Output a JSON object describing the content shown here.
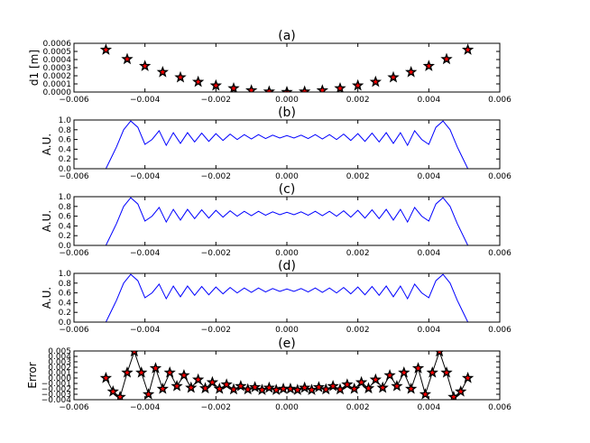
{
  "colors": {
    "line": "#0000ff",
    "marker_edge": "#000000",
    "marker_face": "#ff0000",
    "frame": "#000000"
  },
  "chart_data": [
    {
      "id": "a",
      "type": "scatter",
      "title": "(a)",
      "xlabel": "",
      "ylabel": "d1 [m]",
      "xlim": [
        -0.006,
        0.006
      ],
      "ylim": [
        0,
        0.0006
      ],
      "xticks": [
        "−0.006",
        "−0.004",
        "−0.002",
        "0.000",
        "0.002",
        "0.004",
        "0.006"
      ],
      "yticks": [
        "0.0000",
        "0.0001",
        "0.0002",
        "0.0003",
        "0.0004",
        "0.0005",
        "0.0006"
      ],
      "marker": "star",
      "x": [
        -0.0051,
        -0.0045,
        -0.004,
        -0.0035,
        -0.003,
        -0.0025,
        -0.002,
        -0.0015,
        -0.001,
        -0.0005,
        0.0,
        0.0005,
        0.001,
        0.0015,
        0.002,
        0.0025,
        0.003,
        0.0035,
        0.004,
        0.0045,
        0.0051
      ],
      "y": [
        0.00052,
        0.000405,
        0.00032,
        0.000245,
        0.00018,
        0.000125,
        8e-05,
        4.5e-05,
        2e-05,
        5e-06,
        0.0,
        5e-06,
        2e-05,
        4.5e-05,
        8e-05,
        0.000125,
        0.00018,
        0.000245,
        0.00032,
        0.000405,
        0.00052
      ]
    },
    {
      "id": "b",
      "type": "line",
      "title": "(b)",
      "xlabel": "",
      "ylabel": "A.U.",
      "xlim": [
        -0.006,
        0.006
      ],
      "ylim": [
        0,
        1.0
      ],
      "xticks": [
        "−0.006",
        "−0.004",
        "−0.002",
        "0.000",
        "0.002",
        "0.004",
        "0.006"
      ],
      "yticks": [
        "0.0",
        "0.2",
        "0.4",
        "0.6",
        "0.8",
        "1.0"
      ],
      "x": [
        -0.0051,
        -0.0048,
        -0.0046,
        -0.0044,
        -0.0042,
        -0.004,
        -0.0038,
        -0.0036,
        -0.0034,
        -0.0032,
        -0.003,
        -0.0028,
        -0.0026,
        -0.0024,
        -0.0022,
        -0.002,
        -0.0018,
        -0.0016,
        -0.0014,
        -0.0012,
        -0.001,
        -0.0008,
        -0.0006,
        -0.0004,
        -0.0002,
        0.0,
        0.0002,
        0.0004,
        0.0006,
        0.0008,
        0.001,
        0.0012,
        0.0014,
        0.0016,
        0.0018,
        0.002,
        0.0022,
        0.0024,
        0.0026,
        0.0028,
        0.003,
        0.0032,
        0.0034,
        0.0036,
        0.0038,
        0.004,
        0.0042,
        0.0044,
        0.0046,
        0.0048,
        0.0051
      ],
      "y": [
        0.0,
        0.45,
        0.8,
        0.98,
        0.85,
        0.5,
        0.6,
        0.78,
        0.48,
        0.74,
        0.52,
        0.74,
        0.55,
        0.73,
        0.56,
        0.72,
        0.58,
        0.71,
        0.6,
        0.7,
        0.61,
        0.7,
        0.62,
        0.69,
        0.63,
        0.68,
        0.63,
        0.69,
        0.62,
        0.7,
        0.61,
        0.7,
        0.6,
        0.71,
        0.58,
        0.72,
        0.56,
        0.73,
        0.55,
        0.74,
        0.52,
        0.74,
        0.48,
        0.78,
        0.6,
        0.5,
        0.85,
        0.98,
        0.8,
        0.45,
        0.0
      ]
    },
    {
      "id": "c",
      "type": "line",
      "title": "(c)",
      "xlabel": "",
      "ylabel": "A.U.",
      "xlim": [
        -0.006,
        0.006
      ],
      "ylim": [
        0,
        1.0
      ],
      "xticks": [
        "−0.006",
        "−0.004",
        "−0.002",
        "0.000",
        "0.002",
        "0.004",
        "0.006"
      ],
      "yticks": [
        "0.0",
        "0.2",
        "0.4",
        "0.6",
        "0.8",
        "1.0"
      ],
      "x": [
        -0.0051,
        -0.0048,
        -0.0046,
        -0.0044,
        -0.0042,
        -0.004,
        -0.0038,
        -0.0036,
        -0.0034,
        -0.0032,
        -0.003,
        -0.0028,
        -0.0026,
        -0.0024,
        -0.0022,
        -0.002,
        -0.0018,
        -0.0016,
        -0.0014,
        -0.0012,
        -0.001,
        -0.0008,
        -0.0006,
        -0.0004,
        -0.0002,
        0.0,
        0.0002,
        0.0004,
        0.0006,
        0.0008,
        0.001,
        0.0012,
        0.0014,
        0.0016,
        0.0018,
        0.002,
        0.0022,
        0.0024,
        0.0026,
        0.0028,
        0.003,
        0.0032,
        0.0034,
        0.0036,
        0.0038,
        0.004,
        0.0042,
        0.0044,
        0.0046,
        0.0048,
        0.0051
      ],
      "y": [
        0.0,
        0.45,
        0.8,
        0.98,
        0.85,
        0.5,
        0.6,
        0.78,
        0.48,
        0.74,
        0.52,
        0.74,
        0.55,
        0.73,
        0.56,
        0.72,
        0.58,
        0.71,
        0.6,
        0.7,
        0.61,
        0.7,
        0.62,
        0.69,
        0.63,
        0.68,
        0.63,
        0.69,
        0.62,
        0.7,
        0.61,
        0.7,
        0.6,
        0.71,
        0.58,
        0.72,
        0.56,
        0.73,
        0.55,
        0.74,
        0.52,
        0.74,
        0.48,
        0.78,
        0.6,
        0.5,
        0.85,
        0.98,
        0.8,
        0.45,
        0.0
      ]
    },
    {
      "id": "d",
      "type": "line",
      "title": "(d)",
      "xlabel": "",
      "ylabel": "A.U.",
      "xlim": [
        -0.006,
        0.006
      ],
      "ylim": [
        0,
        1.0
      ],
      "xticks": [
        "−0.006",
        "−0.004",
        "−0.002",
        "0.000",
        "0.002",
        "0.004",
        "0.006"
      ],
      "yticks": [
        "0.0",
        "0.2",
        "0.4",
        "0.6",
        "0.8",
        "1.0"
      ],
      "x": [
        -0.0051,
        -0.0048,
        -0.0046,
        -0.0044,
        -0.0042,
        -0.004,
        -0.0038,
        -0.0036,
        -0.0034,
        -0.0032,
        -0.003,
        -0.0028,
        -0.0026,
        -0.0024,
        -0.0022,
        -0.002,
        -0.0018,
        -0.0016,
        -0.0014,
        -0.0012,
        -0.001,
        -0.0008,
        -0.0006,
        -0.0004,
        -0.0002,
        0.0,
        0.0002,
        0.0004,
        0.0006,
        0.0008,
        0.001,
        0.0012,
        0.0014,
        0.0016,
        0.0018,
        0.002,
        0.0022,
        0.0024,
        0.0026,
        0.0028,
        0.003,
        0.0032,
        0.0034,
        0.0036,
        0.0038,
        0.004,
        0.0042,
        0.0044,
        0.0046,
        0.0048,
        0.0051
      ],
      "y": [
        0.0,
        0.45,
        0.8,
        0.98,
        0.85,
        0.5,
        0.6,
        0.78,
        0.48,
        0.74,
        0.52,
        0.74,
        0.55,
        0.73,
        0.56,
        0.72,
        0.58,
        0.71,
        0.6,
        0.7,
        0.61,
        0.7,
        0.62,
        0.69,
        0.63,
        0.68,
        0.63,
        0.69,
        0.62,
        0.7,
        0.61,
        0.7,
        0.6,
        0.71,
        0.58,
        0.72,
        0.56,
        0.73,
        0.55,
        0.74,
        0.52,
        0.74,
        0.48,
        0.78,
        0.6,
        0.5,
        0.85,
        0.98,
        0.8,
        0.45,
        0.0
      ]
    },
    {
      "id": "e",
      "type": "line",
      "title": "(e)",
      "xlabel": "",
      "ylabel": "Error",
      "xlim": [
        -0.006,
        0.006
      ],
      "ylim": [
        -0.004,
        0.005
      ],
      "xticks": [
        "−0.006",
        "−0.004",
        "−0.002",
        "0.000",
        "0.002",
        "0.004",
        "0.006"
      ],
      "yticks": [
        "−0.004",
        "−0.003",
        "−0.002",
        "−0.001",
        "0.000",
        "0.001",
        "0.002",
        "0.003",
        "0.004",
        "0.005"
      ],
      "marker": "star",
      "x": [
        -0.0051,
        -0.0049,
        -0.0047,
        -0.0045,
        -0.0043,
        -0.0041,
        -0.0039,
        -0.0037,
        -0.0035,
        -0.0033,
        -0.0031,
        -0.0029,
        -0.0027,
        -0.0025,
        -0.0023,
        -0.0021,
        -0.0019,
        -0.0017,
        -0.0015,
        -0.0013,
        -0.0011,
        -0.0009,
        -0.0007,
        -0.0005,
        -0.0003,
        -0.0001,
        0.0001,
        0.0003,
        0.0005,
        0.0007,
        0.0009,
        0.0011,
        0.0013,
        0.0015,
        0.0017,
        0.0019,
        0.0021,
        0.0023,
        0.0025,
        0.0027,
        0.0029,
        0.0031,
        0.0033,
        0.0035,
        0.0037,
        0.0039,
        0.0041,
        0.0043,
        0.0045,
        0.0047,
        0.0049,
        0.0051
      ],
      "y": [
        0.0,
        -0.0025,
        -0.0035,
        0.001,
        0.0049,
        0.001,
        -0.003,
        0.0018,
        -0.002,
        0.001,
        -0.0015,
        0.0005,
        -0.0018,
        -0.0003,
        -0.0019,
        -0.0008,
        -0.002,
        -0.0012,
        -0.0021,
        -0.0015,
        -0.0021,
        -0.0017,
        -0.0022,
        -0.0018,
        -0.0022,
        -0.002,
        -0.002,
        -0.0022,
        -0.0018,
        -0.0022,
        -0.0017,
        -0.0021,
        -0.0015,
        -0.0021,
        -0.0012,
        -0.002,
        -0.0008,
        -0.0019,
        -0.0003,
        -0.0018,
        0.0005,
        -0.0015,
        0.001,
        -0.002,
        0.0018,
        -0.003,
        0.001,
        0.0049,
        0.001,
        -0.0035,
        -0.0025,
        0.0
      ]
    }
  ]
}
